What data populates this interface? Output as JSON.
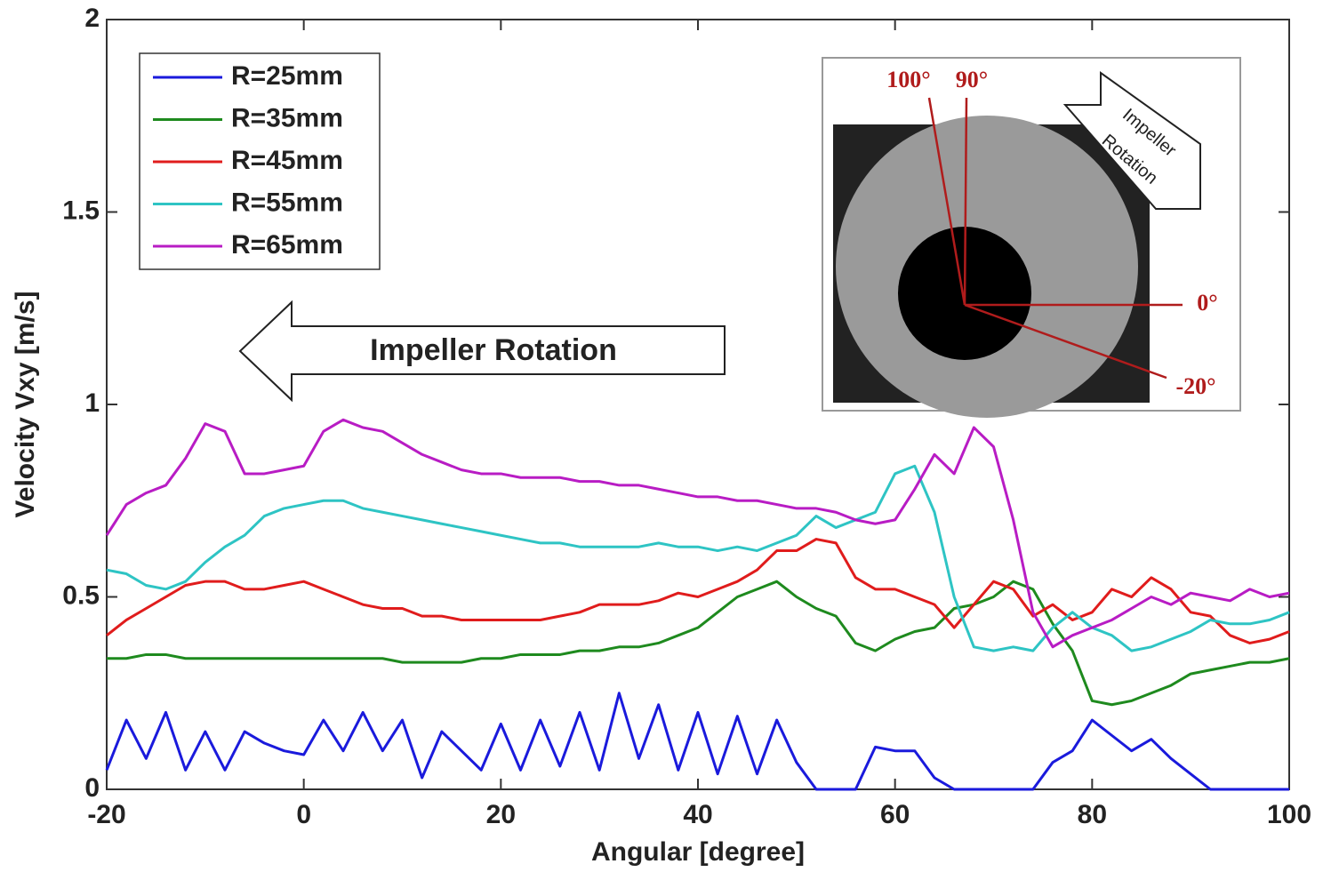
{
  "chart_data": {
    "type": "line",
    "xlabel": "Angular [degree]",
    "ylabel": "Velocity Vxy [m/s]",
    "xlim": [
      -20,
      100
    ],
    "ylim": [
      0,
      2
    ],
    "xticks": [
      -20,
      0,
      20,
      40,
      60,
      80,
      100
    ],
    "yticks": [
      0,
      0.5,
      1,
      1.5,
      2
    ],
    "legend": "upper left",
    "annotations": [
      "Impeller Rotation",
      "100°",
      "90°",
      "0°",
      "-20°",
      "Impeller",
      "Rotation"
    ],
    "x": [
      -20,
      -18,
      -16,
      -14,
      -12,
      -10,
      -8,
      -6,
      -4,
      -2,
      0,
      2,
      4,
      6,
      8,
      10,
      12,
      14,
      16,
      18,
      20,
      22,
      24,
      26,
      28,
      30,
      32,
      34,
      36,
      38,
      40,
      42,
      44,
      46,
      48,
      50,
      52,
      54,
      56,
      58,
      60,
      62,
      64,
      66,
      68,
      70,
      72,
      74,
      76,
      78,
      80,
      82,
      84,
      86,
      88,
      90,
      92,
      94,
      96,
      98,
      100
    ],
    "series": [
      {
        "name": "R=25mm",
        "color": "#1a1adc",
        "values": [
          0.05,
          0.18,
          0.08,
          0.2,
          0.05,
          0.15,
          0.05,
          0.15,
          0.12,
          0.1,
          0.09,
          0.18,
          0.1,
          0.2,
          0.1,
          0.18,
          0.03,
          0.15,
          0.1,
          0.05,
          0.17,
          0.05,
          0.18,
          0.06,
          0.2,
          0.05,
          0.25,
          0.08,
          0.22,
          0.05,
          0.2,
          0.04,
          0.19,
          0.04,
          0.18,
          0.07,
          0,
          0,
          0,
          0.11,
          0.1,
          0.1,
          0.03,
          0,
          0,
          0,
          0,
          0,
          0.07,
          0.1,
          0.18,
          0.14,
          0.1,
          0.13,
          0.08,
          0.04,
          0,
          0,
          0,
          0,
          0
        ]
      },
      {
        "name": "R=35mm",
        "color": "#1e8a1e",
        "values": [
          0.34,
          0.34,
          0.35,
          0.35,
          0.34,
          0.34,
          0.34,
          0.34,
          0.34,
          0.34,
          0.34,
          0.34,
          0.34,
          0.34,
          0.34,
          0.33,
          0.33,
          0.33,
          0.33,
          0.34,
          0.34,
          0.35,
          0.35,
          0.35,
          0.36,
          0.36,
          0.37,
          0.37,
          0.38,
          0.4,
          0.42,
          0.46,
          0.5,
          0.52,
          0.54,
          0.5,
          0.47,
          0.45,
          0.38,
          0.36,
          0.39,
          0.41,
          0.42,
          0.47,
          0.48,
          0.5,
          0.54,
          0.52,
          0.43,
          0.36,
          0.23,
          0.22,
          0.23,
          0.25,
          0.27,
          0.3,
          0.31,
          0.32,
          0.33,
          0.33,
          0.34
        ]
      },
      {
        "name": "R=45mm",
        "color": "#e01c1c",
        "values": [
          0.4,
          0.44,
          0.47,
          0.5,
          0.53,
          0.54,
          0.54,
          0.52,
          0.52,
          0.53,
          0.54,
          0.52,
          0.5,
          0.48,
          0.47,
          0.47,
          0.45,
          0.45,
          0.44,
          0.44,
          0.44,
          0.44,
          0.44,
          0.45,
          0.46,
          0.48,
          0.48,
          0.48,
          0.49,
          0.51,
          0.5,
          0.52,
          0.54,
          0.57,
          0.62,
          0.62,
          0.65,
          0.64,
          0.55,
          0.52,
          0.52,
          0.5,
          0.48,
          0.42,
          0.48,
          0.54,
          0.52,
          0.45,
          0.48,
          0.44,
          0.46,
          0.52,
          0.5,
          0.55,
          0.52,
          0.46,
          0.45,
          0.4,
          0.38,
          0.39,
          0.41
        ]
      },
      {
        "name": "R=55mm",
        "color": "#2ec4c4",
        "values": [
          0.57,
          0.56,
          0.53,
          0.52,
          0.54,
          0.59,
          0.63,
          0.66,
          0.71,
          0.73,
          0.74,
          0.75,
          0.75,
          0.73,
          0.72,
          0.71,
          0.7,
          0.69,
          0.68,
          0.67,
          0.66,
          0.65,
          0.64,
          0.64,
          0.63,
          0.63,
          0.63,
          0.63,
          0.64,
          0.63,
          0.63,
          0.62,
          0.63,
          0.62,
          0.64,
          0.66,
          0.71,
          0.68,
          0.7,
          0.72,
          0.82,
          0.84,
          0.72,
          0.5,
          0.37,
          0.36,
          0.37,
          0.36,
          0.42,
          0.46,
          0.42,
          0.4,
          0.36,
          0.37,
          0.39,
          0.41,
          0.44,
          0.43,
          0.43,
          0.44,
          0.46
        ]
      },
      {
        "name": "R=65mm",
        "color": "#b81cc4",
        "values": [
          0.66,
          0.74,
          0.77,
          0.79,
          0.86,
          0.95,
          0.93,
          0.82,
          0.82,
          0.83,
          0.84,
          0.93,
          0.96,
          0.94,
          0.93,
          0.9,
          0.87,
          0.85,
          0.83,
          0.82,
          0.82,
          0.81,
          0.81,
          0.81,
          0.8,
          0.8,
          0.79,
          0.79,
          0.78,
          0.77,
          0.76,
          0.76,
          0.75,
          0.75,
          0.74,
          0.73,
          0.73,
          0.72,
          0.7,
          0.69,
          0.7,
          0.78,
          0.87,
          0.82,
          0.94,
          0.89,
          0.7,
          0.46,
          0.37,
          0.4,
          0.42,
          0.44,
          0.47,
          0.5,
          0.48,
          0.51,
          0.5,
          0.49,
          0.52,
          0.5,
          0.51
        ]
      }
    ]
  }
}
